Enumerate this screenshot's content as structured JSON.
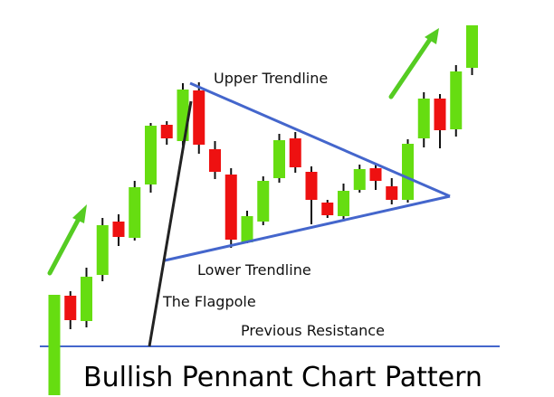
{
  "labels": {
    "upper_trendline": "Upper Trendline",
    "lower_trendline": "Lower Trendline",
    "flagpole": "The Flagpole",
    "previous_resistance": "Previous Resistance",
    "title": "Bullish Pennant Chart Pattern"
  },
  "colors": {
    "bullish": "#66dd11",
    "bearish": "#ee1111",
    "trendline": "#4466cc",
    "arrow": "#55cc22",
    "flagpole": "#222222",
    "wick": "#111111"
  },
  "chart_data": {
    "type": "candlestick",
    "ylim": [
      0,
      439
    ],
    "note_units": "unitless price scale, higher value = higher price",
    "candles": [
      {
        "dir": "up",
        "open": 2,
        "close": 113,
        "high": 113,
        "low": 2
      },
      {
        "dir": "down",
        "open": 112,
        "close": 85,
        "high": 117,
        "low": 75
      },
      {
        "dir": "up",
        "open": 84,
        "close": 133,
        "high": 143,
        "low": 77
      },
      {
        "dir": "up",
        "open": 135,
        "close": 190,
        "high": 198,
        "low": 128
      },
      {
        "dir": "down",
        "open": 194,
        "close": 177,
        "high": 202,
        "low": 167
      },
      {
        "dir": "up",
        "open": 176,
        "close": 232,
        "high": 239,
        "low": 173
      },
      {
        "dir": "up",
        "open": 235,
        "close": 300,
        "high": 303,
        "low": 226
      },
      {
        "dir": "down",
        "open": 301,
        "close": 286,
        "high": 305,
        "low": 279
      },
      {
        "dir": "up",
        "open": 283,
        "close": 340,
        "high": 347,
        "low": 278
      },
      {
        "dir": "down",
        "open": 339,
        "close": 279,
        "high": 348,
        "low": 269
      },
      {
        "dir": "down",
        "open": 274,
        "close": 249,
        "high": 283,
        "low": 241
      },
      {
        "dir": "down",
        "open": 246,
        "close": 174,
        "high": 253,
        "low": 165
      },
      {
        "dir": "up",
        "open": 171,
        "close": 200,
        "high": 206,
        "low": 170
      },
      {
        "dir": "up",
        "open": 194,
        "close": 239,
        "high": 244,
        "low": 190
      },
      {
        "dir": "up",
        "open": 242,
        "close": 284,
        "high": 291,
        "low": 237
      },
      {
        "dir": "down",
        "open": 286,
        "close": 254,
        "high": 293,
        "low": 248
      },
      {
        "dir": "down",
        "open": 249,
        "close": 218,
        "high": 255,
        "low": 191
      },
      {
        "dir": "down",
        "open": 215,
        "close": 201,
        "high": 218,
        "low": 198
      },
      {
        "dir": "up",
        "open": 200,
        "close": 228,
        "high": 236,
        "low": 196
      },
      {
        "dir": "up",
        "open": 229,
        "close": 252,
        "high": 257,
        "low": 226
      },
      {
        "dir": "down",
        "open": 253,
        "close": 239,
        "high": 258,
        "low": 229
      },
      {
        "dir": "down",
        "open": 233,
        "close": 218,
        "high": 242,
        "low": 213
      },
      {
        "dir": "up",
        "open": 218,
        "close": 280,
        "high": 285,
        "low": 215
      },
      {
        "dir": "up",
        "open": 286,
        "close": 330,
        "high": 337,
        "low": 276
      },
      {
        "dir": "down",
        "open": 330,
        "close": 295,
        "high": 335,
        "low": 275
      },
      {
        "dir": "up",
        "open": 296,
        "close": 360,
        "high": 367,
        "low": 288
      },
      {
        "dir": "up",
        "open": 364,
        "close": 411,
        "high": 411,
        "low": 356
      }
    ]
  }
}
